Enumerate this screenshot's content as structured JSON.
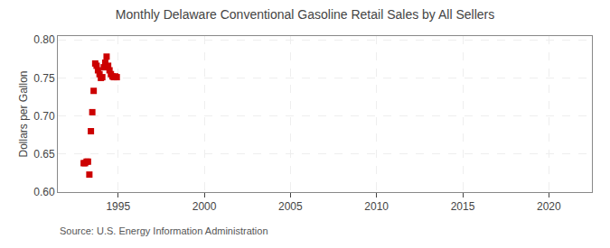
{
  "chart_data": {
    "type": "scatter",
    "title": "Monthly Delaware Conventional Gasoline Retail Sales by All Sellers",
    "ylabel": "Dollars per Gallon",
    "annotations": [
      "Source: U.S. Energy Information Administration"
    ],
    "x": [
      1993.0,
      1993.08,
      1993.17,
      1993.25,
      1993.33,
      1993.42,
      1993.5,
      1993.58,
      1993.67,
      1993.75,
      1993.83,
      1993.92,
      1994.0,
      1994.08,
      1994.17,
      1994.25,
      1994.33,
      1994.42,
      1994.5,
      1994.58,
      1994.67,
      1994.75,
      1994.83,
      1994.92
    ],
    "values": [
      0.638,
      0.638,
      0.64,
      0.64,
      0.623,
      0.68,
      0.705,
      0.733,
      0.769,
      0.766,
      0.76,
      0.755,
      0.75,
      0.751,
      0.764,
      0.77,
      0.778,
      0.766,
      0.76,
      0.755,
      0.752,
      0.751,
      0.752,
      0.751
    ],
    "color": "#cc0000",
    "marker": "square",
    "xlim": [
      1991.5,
      2022.5
    ],
    "xticks": [
      1995,
      2000,
      2005,
      2010,
      2015,
      2020
    ],
    "ylim": [
      0.6,
      0.805
    ],
    "yticks": [
      {
        "value": 0.6,
        "label": "0.60"
      },
      0.65,
      {
        "value": 0.7,
        "label": "0.70"
      },
      0.75,
      {
        "value": 0.8,
        "label": "0.80"
      }
    ],
    "grid": true
  }
}
